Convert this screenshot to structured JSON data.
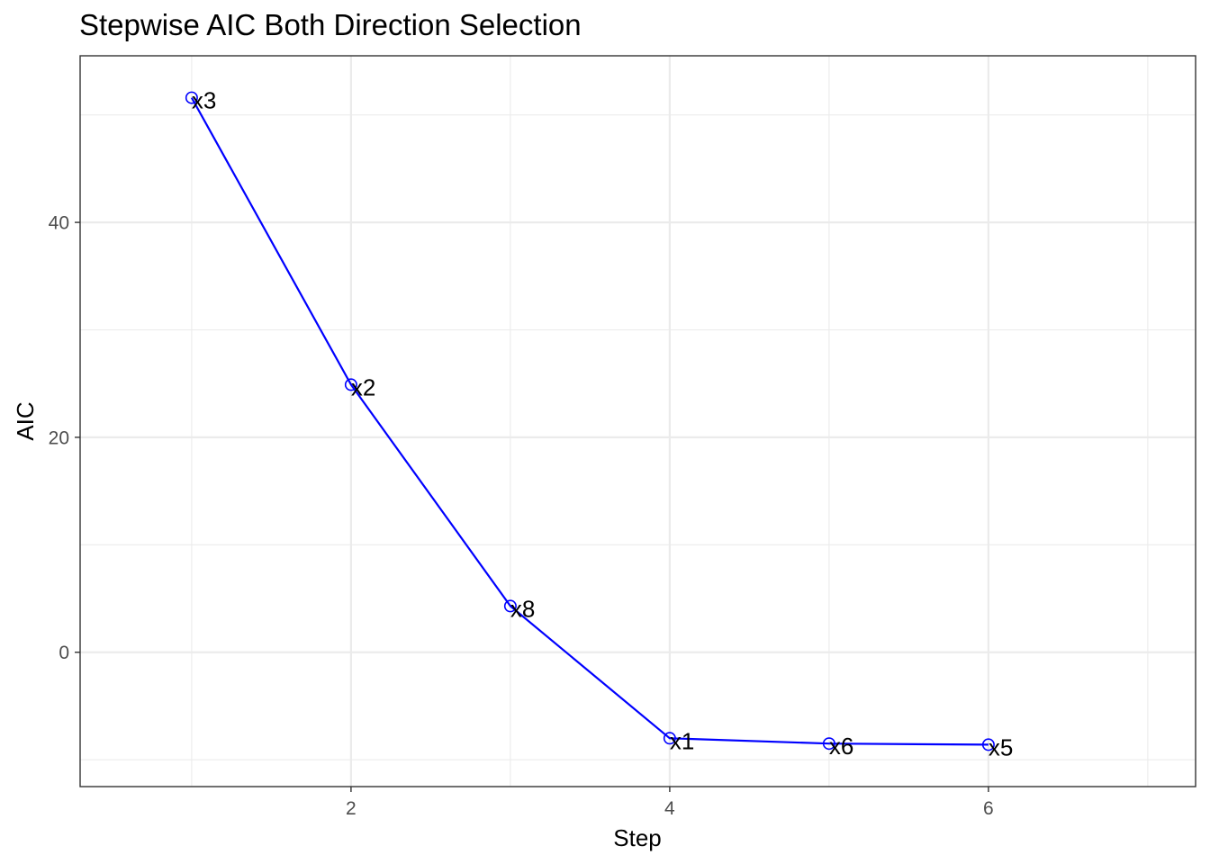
{
  "chart_data": {
    "type": "line",
    "title": "Stepwise AIC Both Direction Selection",
    "xlabel": "Step",
    "ylabel": "AIC",
    "xlim": [
      0.3,
      7.3
    ],
    "ylim": [
      -12.5,
      55.5
    ],
    "x_ticks": [
      2,
      4,
      6
    ],
    "x_tick_labels": [
      "2",
      "4",
      "6"
    ],
    "x_minor_ticks": [
      1,
      3,
      5,
      7
    ],
    "y_ticks": [
      0,
      20,
      40
    ],
    "y_tick_labels": [
      "0",
      "20",
      "40"
    ],
    "y_minor_ticks": [
      -10,
      10,
      30,
      50
    ],
    "grid": true,
    "legend": "none",
    "series": [
      {
        "x": [
          1,
          2,
          3,
          4,
          5,
          6
        ],
        "y": [
          51.6,
          24.9,
          4.3,
          -8.0,
          -8.5,
          -8.6
        ],
        "labels": [
          "x3",
          "x2",
          "x8",
          "x1",
          "x6",
          "x5"
        ],
        "color": "#0000ff"
      }
    ],
    "colors": {
      "line": "#0000ff",
      "grid": "#ebebeb",
      "panel_border": "#333333",
      "tick_text": "#4d4d4d"
    }
  }
}
